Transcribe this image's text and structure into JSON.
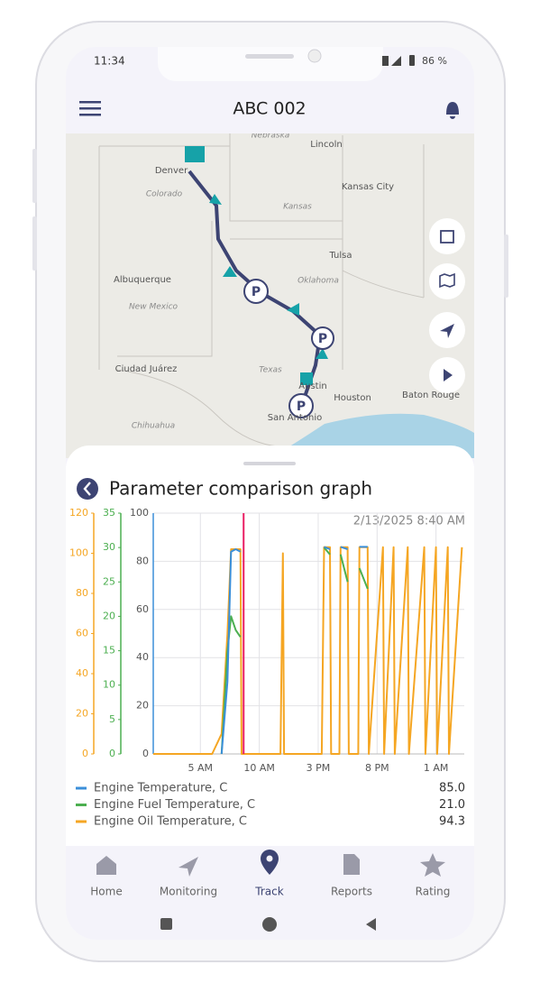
{
  "status": {
    "time": "11:34",
    "battery": "86 %"
  },
  "header": {
    "title": "ABC 002"
  },
  "map": {
    "labels": [
      "Nebraska",
      "Lincoln",
      "Denver",
      "Kansas City",
      "Colorado",
      "Kansas",
      "Tulsa",
      "Albuquerque",
      "Oklahoma",
      "New Mexico",
      "Ciudad Juárez",
      "Texas",
      "Austin",
      "Houston",
      "Baton Rouge",
      "San Antonio",
      "Chihuahua"
    ]
  },
  "chart_data": {
    "type": "line",
    "title": "Parameter comparison graph",
    "subtitle": "2/13/2025 8:40 AM",
    "x": [
      1,
      6,
      6.8,
      7.3,
      7.6,
      8.0,
      8.4,
      8.5,
      11.8,
      12.0,
      12.1,
      15.3,
      15.5,
      16.0,
      16.1,
      16.8,
      16.9,
      17.5,
      17.6,
      18.4,
      18.5,
      19.2,
      19.3,
      20.5,
      20.6,
      21.4,
      21.5,
      22.6,
      22.7,
      24.0,
      24.1,
      25.0,
      25.1,
      26.0,
      26.1,
      27.2
    ],
    "xlim": [
      1,
      27.4
    ],
    "xticks": [
      {
        "value": 5,
        "label": "5 AM"
      },
      {
        "value": 10,
        "label": "10 AM"
      },
      {
        "value": 15,
        "label": "3 PM"
      },
      {
        "value": 20,
        "label": "8 PM"
      },
      {
        "value": 25,
        "label": "1 AM"
      }
    ],
    "cursor_x": 8.67,
    "cursor_color": "#e91e63",
    "ylim": [
      0,
      100
    ],
    "yticks": [
      0,
      20,
      40,
      60,
      80,
      100
    ],
    "y2lim": [
      0,
      35
    ],
    "y2ticks": [
      0,
      5,
      10,
      15,
      20,
      25,
      30,
      35
    ],
    "y3lim": [
      0,
      120
    ],
    "y3ticks": [
      0,
      20,
      40,
      60,
      80,
      100,
      120
    ],
    "grid": true,
    "series": [
      {
        "name": "Engine Temperature, C",
        "color": "#3b8fd9",
        "axis": "y",
        "current": "85.0",
        "values": [
          null,
          null,
          0,
          30,
          84,
          85,
          84,
          null,
          null,
          85,
          null,
          null,
          86,
          85,
          null,
          null,
          86,
          85,
          null,
          null,
          86,
          86,
          null,
          86,
          null,
          85,
          null,
          86,
          null,
          86,
          null,
          85,
          null,
          86,
          null,
          86
        ]
      },
      {
        "name": "Engine Fuel Temperature, C",
        "color": "#4caf50",
        "axis": "y2",
        "current": "21.0",
        "values": [
          null,
          null,
          0,
          15,
          20,
          18,
          17,
          null,
          null,
          29,
          null,
          null,
          30,
          29,
          null,
          null,
          29,
          25,
          null,
          null,
          27,
          24,
          null,
          25,
          null,
          26,
          null,
          29,
          null,
          24,
          null,
          28,
          null,
          29,
          null,
          29
        ]
      },
      {
        "name": "Engine Oil Temperature, C",
        "color": "#f5a623",
        "axis": "y3",
        "current": "94.3",
        "values": [
          0,
          0,
          10,
          60,
          102,
          102,
          102,
          0,
          0,
          100,
          0,
          0,
          103,
          103,
          0,
          0,
          103,
          103,
          0,
          0,
          103,
          103,
          0,
          103,
          0,
          103,
          0,
          103,
          0,
          103,
          0,
          103,
          0,
          103,
          0,
          103
        ]
      }
    ]
  },
  "nav": [
    "Home",
    "Monitoring",
    "Track",
    "Reports",
    "Rating"
  ]
}
